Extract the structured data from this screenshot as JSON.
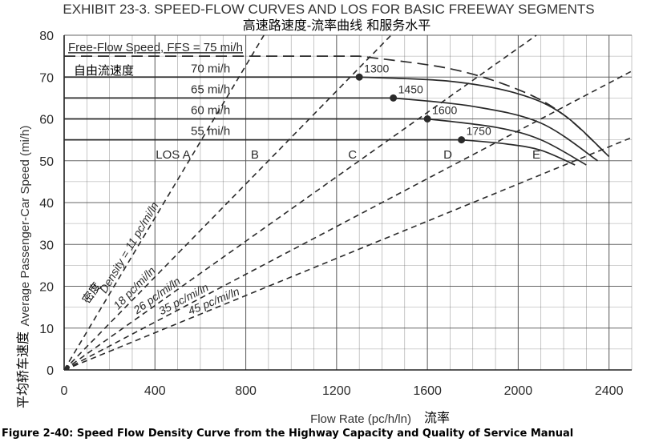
{
  "chart_data": {
    "type": "line",
    "title": "EXHIBIT 23-3.  SPEED-FLOW CURVES AND LOS FOR BASIC FREEWAY SEGMENTS",
    "title_cn": "高速路速度-流率曲线 和服务水平",
    "xlabel": "Flow Rate (pc/h/ln)",
    "xlabel_cn": "流率",
    "ylabel": "Average Passenger-Car Speed (mi/h)",
    "ylabel_cn": "平均轿车速度",
    "xlim": [
      0,
      2500
    ],
    "ylim": [
      0,
      80
    ],
    "xticks": [
      0,
      400,
      800,
      1200,
      1600,
      2000,
      2400
    ],
    "yticks": [
      0,
      10,
      20,
      30,
      40,
      50,
      60,
      70,
      80
    ],
    "grid": true,
    "series": [
      {
        "name": "Free-Flow Speed, FFS = 75 mi/h",
        "ffs": 75,
        "breakpoint": 1300,
        "capacity": 2400,
        "speed_at_capacity": 51,
        "points": [
          [
            0,
            75
          ],
          [
            1300,
            75
          ],
          [
            1700,
            72
          ],
          [
            2000,
            67
          ],
          [
            2200,
            61
          ],
          [
            2400,
            51
          ]
        ]
      },
      {
        "name": "70 mi/h",
        "ffs": 70,
        "breakpoint": 1300,
        "capacity": 2400,
        "speed_at_capacity": 51,
        "points": [
          [
            0,
            70
          ],
          [
            1300,
            70
          ],
          [
            1700,
            69
          ],
          [
            2000,
            66
          ],
          [
            2200,
            61
          ],
          [
            2400,
            51
          ]
        ]
      },
      {
        "name": "65 mi/h",
        "ffs": 65,
        "breakpoint": 1450,
        "capacity": 2350,
        "speed_at_capacity": 50,
        "points": [
          [
            0,
            65
          ],
          [
            1450,
            65
          ],
          [
            1800,
            63
          ],
          [
            2100,
            59
          ],
          [
            2350,
            50
          ]
        ]
      },
      {
        "name": "60 mi/h",
        "ffs": 60,
        "breakpoint": 1600,
        "capacity": 2300,
        "speed_at_capacity": 49,
        "points": [
          [
            0,
            60
          ],
          [
            1600,
            60
          ],
          [
            1900,
            58
          ],
          [
            2100,
            55
          ],
          [
            2300,
            49
          ]
        ]
      },
      {
        "name": "55 mi/h",
        "ffs": 55,
        "breakpoint": 1750,
        "capacity": 2250,
        "speed_at_capacity": 49,
        "points": [
          [
            0,
            55
          ],
          [
            1750,
            55
          ],
          [
            1950,
            54
          ],
          [
            2100,
            52.5
          ],
          [
            2250,
            49
          ]
        ]
      }
    ],
    "breakpoints": [
      {
        "label": "1300",
        "x": 1300,
        "y": 70
      },
      {
        "label": "1450",
        "x": 1450,
        "y": 65
      },
      {
        "label": "1600",
        "x": 1600,
        "y": 60
      },
      {
        "label": "1750",
        "x": 1750,
        "y": 55
      }
    ],
    "density_lines": [
      {
        "label": "Density = 11 pc/mi/ln",
        "density": 11
      },
      {
        "label": "18 pc/mi/ln",
        "density": 18
      },
      {
        "label": "26 pc/mi/ln",
        "density": 26
      },
      {
        "label": "35 pc/mi/ln",
        "density": 35
      },
      {
        "label": "45 pc/mi/ln",
        "density": 45
      }
    ],
    "density_note_cn": "密度",
    "ffs_note_cn": "自由流速度",
    "los_labels": [
      {
        "label": "LOS A",
        "x": 480,
        "y": 50.5
      },
      {
        "label": "B",
        "x": 840,
        "y": 50.5
      },
      {
        "label": "C",
        "x": 1270,
        "y": 50.5
      },
      {
        "label": "D",
        "x": 1690,
        "y": 50.5
      },
      {
        "label": "E",
        "x": 2080,
        "y": 50.5
      }
    ]
  },
  "caption": "Figure 2-40: Speed Flow Density Curve from the Highway Capacity and Quality of Service Manual",
  "colors": {
    "line": "#2a2a2a",
    "grid": "#555555",
    "text": "#2b2b2b"
  }
}
